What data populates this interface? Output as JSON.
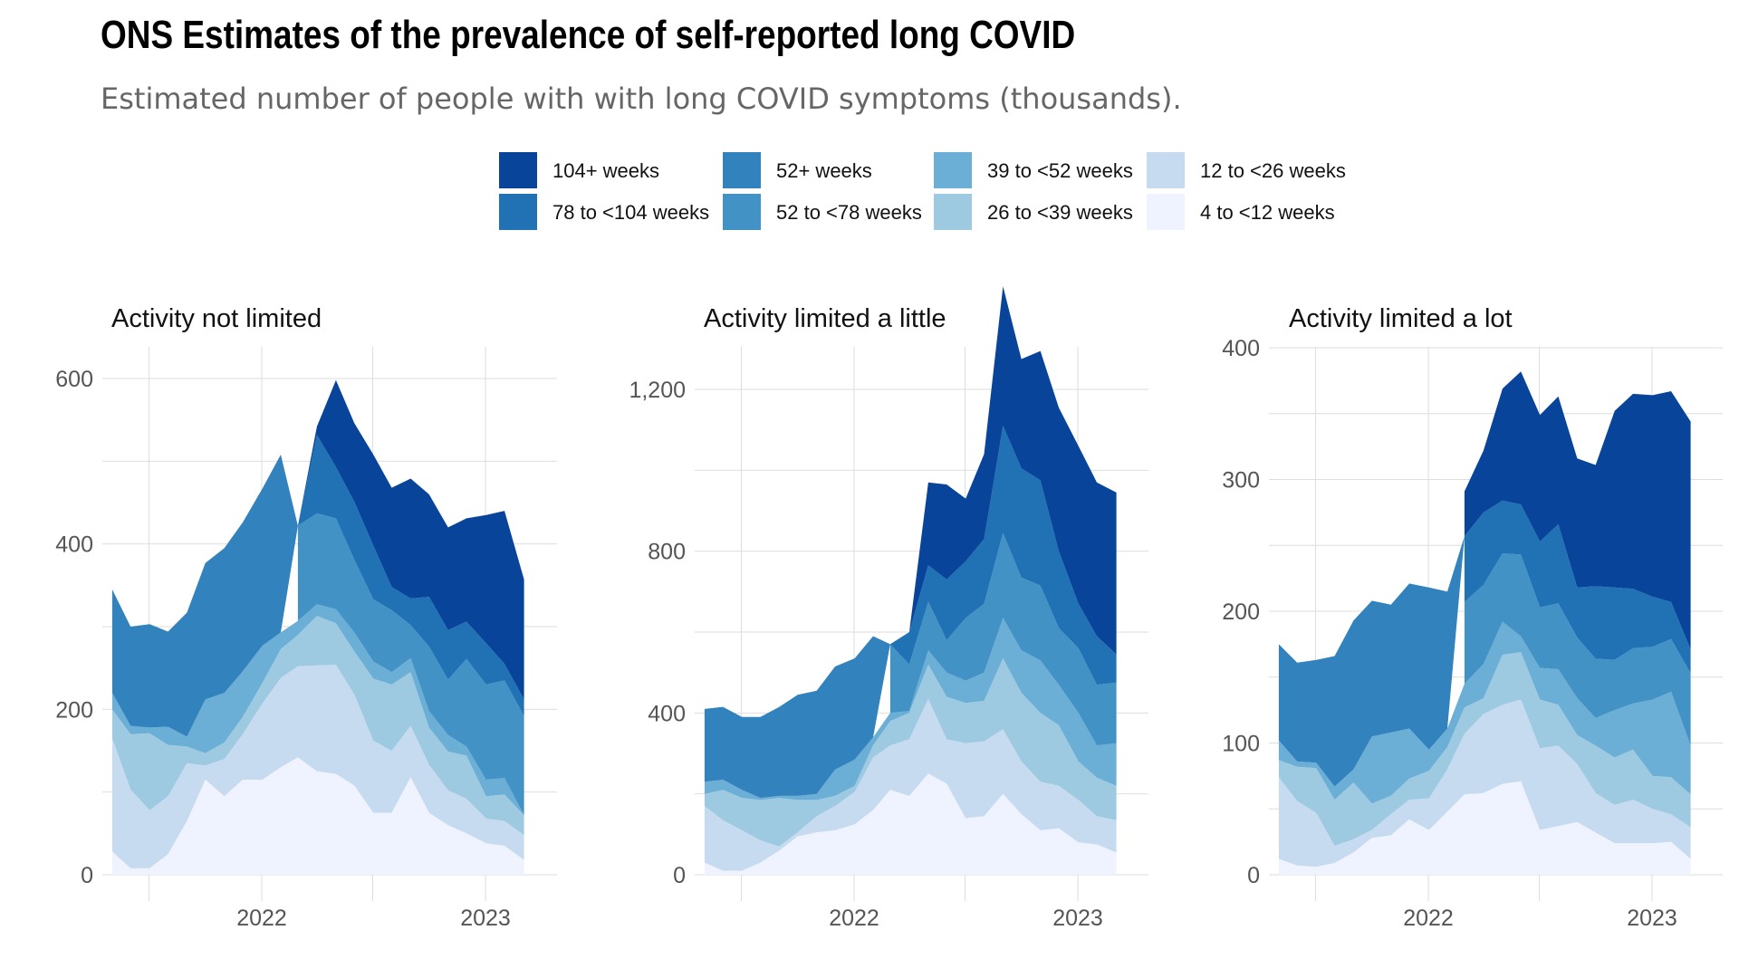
{
  "title": "ONS Estimates of the prevalence of self-reported long COVID",
  "subtitle": "Estimated number of people with with long COVID symptoms (thousands).",
  "colors": {
    "4 to <12 weeks": "#eff3ff",
    "12 to <26 weeks": "#c6dbef",
    "26 to <39 weeks": "#9ecae1",
    "39 to <52 weeks": "#6baed6",
    "52 to <78 weeks": "#4292c6",
    "78 to <104 weeks": "#2171b5",
    "52+ weeks": "#3182bd",
    "104+ weeks": "#08459a"
  },
  "legend": {
    "columns": [
      [
        "104+ weeks",
        "78 to <104 weeks"
      ],
      [
        "52+ weeks",
        "52 to <78 weeks"
      ],
      [
        "39 to <52 weeks",
        "26 to <39 weeks"
      ],
      [
        "12 to <26 weeks",
        "4 to <12 weeks"
      ]
    ]
  },
  "chart_data": {
    "type": "area",
    "stacked": true,
    "grid": true,
    "legend_position": "top",
    "x": [
      "2021-05-02",
      "2021-06-01",
      "2021-07-02",
      "2021-08-01",
      "2021-09-01",
      "2021-10-01",
      "2021-11-01",
      "2021-12-01",
      "2022-01-02",
      "2022-02-01",
      "2022-03-01",
      "2022-04-01",
      "2022-05-02",
      "2022-06-01",
      "2022-07-02",
      "2022-08-01",
      "2022-09-01",
      "2022-10-01",
      "2022-11-01",
      "2022-12-01",
      "2023-01-02",
      "2023-02-01",
      "2023-03-05"
    ],
    "x_ticks": [
      "2022",
      "2023"
    ],
    "panels": [
      {
        "title": "Activity not limited",
        "ylim": [
          0,
          620
        ],
        "y_ticks": [
          0,
          200,
          400,
          600
        ],
        "y_tick_labels": [
          "0",
          "200",
          "400",
          "600"
        ],
        "series": [
          {
            "name": "4 to <12 weeks",
            "values": [
              28,
              8,
              8,
              25,
              65,
              115,
              95,
              115,
              115,
              130,
              142,
              125,
              122,
              108,
              75,
              75,
              118,
              75,
              60,
              50,
              38,
              35,
              18
            ]
          },
          {
            "name": "12 to <26 weeks",
            "values": [
              137,
              95,
              70,
              70,
              70,
              17,
              45,
              55,
              92,
              108,
              110,
              128,
              132,
              110,
              87,
              75,
              62,
              58,
              42,
              42,
              30,
              30,
              30
            ]
          },
          {
            "name": "26 to <39 weeks",
            "values": [
              35,
              67,
              93,
              62,
              20,
              15,
              20,
              21,
              25,
              35,
              38,
              60,
              50,
              52,
              75,
              80,
              65,
              45,
              47,
              52,
              27,
              32,
              24
            ]
          },
          {
            "name": "39 to <52 weeks",
            "values": [
              20,
              10,
              7,
              22,
              12,
              65,
              60,
              55,
              45,
              20,
              17,
              14,
              17,
              23,
              21,
              15,
              17,
              20,
              20,
              11,
              20,
              20,
              0
            ]
          },
          {
            "name": "52 to <78 weeks",
            "values": [
              null,
              null,
              null,
              null,
              null,
              null,
              null,
              null,
              null,
              null,
              115,
              110,
              110,
              88,
              75,
              75,
              40,
              78,
              67,
              106,
              115,
              118,
              120
            ]
          },
          {
            "name": "78 to <104 weeks",
            "values": [
              null,
              null,
              null,
              null,
              null,
              null,
              null,
              null,
              null,
              null,
              0,
              95,
              62,
              70,
              65,
              28,
              32,
              60,
              60,
              45,
              50,
              20,
              20
            ]
          },
          {
            "name": "52+ weeks",
            "values": [
              125,
              120,
              125,
              115,
              150,
              165,
              175,
              180,
              190,
              215,
              0,
              null,
              null,
              null,
              null,
              null,
              null,
              null,
              null,
              null,
              null,
              null,
              null
            ]
          },
          {
            "name": "104+ weeks",
            "values": [
              null,
              null,
              null,
              null,
              null,
              null,
              null,
              null,
              null,
              null,
              0,
              10,
              105,
              95,
              110,
              120,
              145,
              124,
              124,
              125,
              155,
              185,
              145
            ]
          }
        ]
      },
      {
        "title": "Activity limited a little",
        "ylim": [
          0,
          1310
        ],
        "y_ticks": [
          0,
          400,
          800,
          1200
        ],
        "y_tick_labels": [
          "0",
          "400",
          "800",
          "1,200"
        ],
        "series": [
          {
            "name": "4 to <12 weeks",
            "values": [
              30,
              10,
              10,
              30,
              60,
              95,
              105,
              110,
              125,
              160,
              210,
              195,
              250,
              225,
              140,
              145,
              200,
              150,
              110,
              115,
              80,
              75,
              55
            ]
          },
          {
            "name": "12 to <26 weeks",
            "values": [
              140,
              125,
              100,
              55,
              10,
              10,
              40,
              60,
              80,
              130,
              110,
              140,
              185,
              110,
              185,
              185,
              160,
              130,
              120,
              105,
              105,
              70,
              80
            ]
          },
          {
            "name": "26 to <39 weeks",
            "values": [
              30,
              75,
              80,
              100,
              120,
              80,
              40,
              25,
              15,
              30,
              60,
              65,
              85,
              105,
              100,
              100,
              175,
              170,
              170,
              150,
              95,
              95,
              85
            ]
          },
          {
            "name": "39 to <52 weeks",
            "values": [
              30,
              25,
              20,
              5,
              5,
              10,
              15,
              65,
              65,
              20,
              20,
              5,
              35,
              60,
              55,
              70,
              100,
              105,
              130,
              100,
              120,
              80,
              105
            ]
          },
          {
            "name": "52 to <78 weeks",
            "values": [
              null,
              null,
              null,
              null,
              null,
              null,
              null,
              null,
              null,
              null,
              170,
              115,
              120,
              80,
              155,
              170,
              210,
              180,
              185,
              140,
              160,
              150,
              150
            ]
          },
          {
            "name": "78 to <104 weeks",
            "values": [
              null,
              null,
              null,
              null,
              null,
              null,
              null,
              null,
              null,
              null,
              0,
              80,
              90,
              150,
              140,
              160,
              265,
              270,
              260,
              190,
              110,
              120,
              70
            ]
          },
          {
            "name": "52+ weeks",
            "values": [
              180,
              180,
              180,
              200,
              220,
              250,
              255,
              255,
              250,
              250,
              0,
              null,
              null,
              null,
              null,
              null,
              null,
              null,
              null,
              null,
              null,
              null,
              null
            ]
          },
          {
            "name": "104+ weeks",
            "values": [
              null,
              null,
              null,
              null,
              null,
              null,
              null,
              null,
              null,
              null,
              0,
              0,
              205,
              235,
              155,
              210,
              345,
              270,
              320,
              355,
              390,
              380,
              400
            ]
          }
        ]
      },
      {
        "title": "Activity limited a lot",
        "ylim": [
          0,
          400
        ],
        "y_ticks": [
          0,
          100,
          200,
          300,
          400
        ],
        "y_tick_labels": [
          "0",
          "100",
          "200",
          "300",
          "400"
        ],
        "series": [
          {
            "name": "4 to <12 weeks",
            "values": [
              12,
              7,
              6,
              9,
              17,
              28,
              30,
              42,
              34,
              48,
              61,
              62,
              69,
              71,
              34,
              37,
              40,
              32,
              24,
              24,
              24,
              25,
              12
            ]
          },
          {
            "name": "12 to <26 weeks",
            "values": [
              62,
              49,
              41,
              13,
              10,
              6,
              16,
              15,
              24,
              32,
              46,
              60,
              60,
              62,
              62,
              61,
              44,
              30,
              29,
              33,
              26,
              21,
              24
            ]
          },
          {
            "name": "26 to <39 weeks",
            "values": [
              13,
              26,
              34,
              35,
              43,
              20,
              14,
              16,
              21,
              17,
              20,
              12,
              38,
              36,
              37,
              31,
              22,
              36,
              36,
              38,
              25,
              28,
              25
            ]
          },
          {
            "name": "39 to <52 weeks",
            "values": [
              15,
              4,
              4,
              10,
              10,
              51,
              48,
              38,
              16,
              14,
              18,
              26,
              25,
              12,
              24,
              27,
              28,
              21,
              36,
              35,
              58,
              65,
              37
            ]
          },
          {
            "name": "52 to <78 weeks",
            "values": [
              null,
              null,
              null,
              null,
              null,
              null,
              null,
              null,
              null,
              null,
              62,
              60,
              52,
              62,
              46,
              50,
              46,
              45,
              38,
              42,
              40,
              40,
              55
            ]
          },
          {
            "name": "78 to <104 weeks",
            "values": [
              null,
              null,
              null,
              null,
              null,
              null,
              null,
              null,
              null,
              null,
              50,
              55,
              40,
              38,
              50,
              60,
              38,
              55,
              55,
              45,
              38,
              28,
              18
            ]
          },
          {
            "name": "52+ weeks",
            "values": [
              73,
              75,
              78,
              99,
              113,
              103,
              97,
              110,
              123,
              104,
              0,
              null,
              null,
              null,
              null,
              null,
              null,
              null,
              null,
              null,
              null,
              null,
              null
            ]
          },
          {
            "name": "104+ weeks",
            "values": [
              null,
              null,
              null,
              null,
              null,
              null,
              null,
              null,
              null,
              null,
              34,
              47,
              85,
              101,
              96,
              97,
              98,
              92,
              134,
              148,
              153,
              160,
              173
            ]
          }
        ]
      }
    ]
  }
}
